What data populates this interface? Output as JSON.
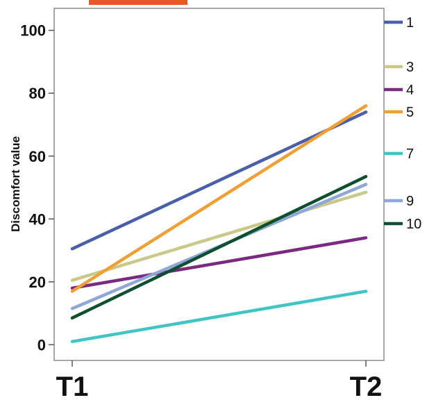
{
  "chart_data": {
    "type": "line",
    "title": "",
    "xlabel": "",
    "ylabel": "Discomfort value",
    "categories": [
      "T1",
      "T2"
    ],
    "ylim": [
      -5,
      107
    ],
    "yticks": [
      0,
      20,
      40,
      60,
      80,
      100
    ],
    "grid": false,
    "legend_position": "right",
    "series": [
      {
        "name": "1",
        "values": [
          30.5,
          74
        ],
        "color": "#4a5fa8"
      },
      {
        "name": "3",
        "values": [
          20.5,
          48.5
        ],
        "color": "#c9c98a"
      },
      {
        "name": "4",
        "values": [
          18,
          34
        ],
        "color": "#7b2a82"
      },
      {
        "name": "5",
        "values": [
          17,
          76
        ],
        "color": "#f0a032"
      },
      {
        "name": "7",
        "values": [
          1,
          17
        ],
        "color": "#40c4c4"
      },
      {
        "name": "9",
        "values": [
          11.5,
          51
        ],
        "color": "#8fa6d6"
      },
      {
        "name": "10",
        "values": [
          8.5,
          53.5
        ],
        "color": "#0d4f2e"
      }
    ]
  }
}
